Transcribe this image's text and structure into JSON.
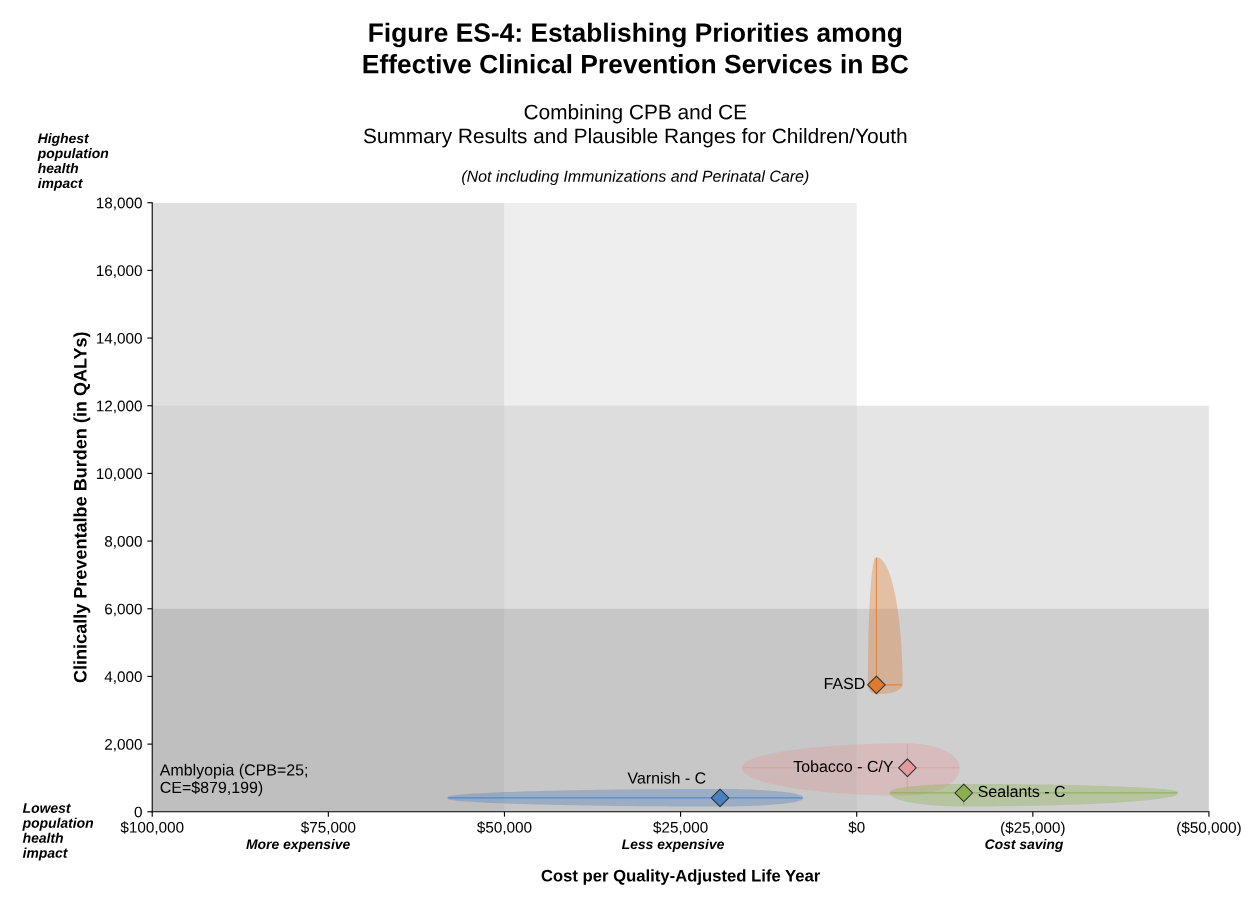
{
  "chart_data": {
    "type": "scatter",
    "title": "Figure ES-4: Establishing Priorities among\nEffective Clinical Prevention Services in BC",
    "subtitle": "Combining CPB and CE\nSummary Results and Plausible Ranges for Children/Youth",
    "xlabel": "Cost per Quality-Adjusted Life Year",
    "ylabel": "Clinically Preventalbe Burden (in QALYs)",
    "xlim": [
      100000,
      -50000
    ],
    "ylim": [
      0,
      18000
    ],
    "xticks": [
      {
        "value": 100000,
        "label": "$100,000"
      },
      {
        "value": 75000,
        "label": "$75,000"
      },
      {
        "value": 50000,
        "label": "$50,000"
      },
      {
        "value": 25000,
        "label": "$25,000"
      },
      {
        "value": 0,
        "label": "$0"
      },
      {
        "value": -25000,
        "label": "($25,000)"
      },
      {
        "value": -50000,
        "label": "($50,000)"
      }
    ],
    "yticks": [
      0,
      {
        "value": 2000,
        "label": "2,000"
      },
      {
        "value": 4000,
        "label": "4,000"
      },
      {
        "value": 6000,
        "label": "6,000"
      },
      {
        "value": 8000,
        "label": "8,000"
      },
      {
        "value": 10000,
        "label": "10,000"
      },
      {
        "value": 12000,
        "label": "12,000"
      },
      {
        "value": 14000,
        "label": "14,000"
      },
      {
        "value": 16000,
        "label": "16,000"
      },
      {
        "value": 18000,
        "label": "18,000"
      }
    ],
    "marker": "diamond",
    "grid": false,
    "bands": [
      {
        "axis": "x",
        "from": 100000,
        "to": 50000,
        "color": "#c0c0c0"
      },
      {
        "axis": "x",
        "from": 50000,
        "to": 0,
        "color": "#dedede"
      },
      {
        "axis": "y",
        "from": 6000,
        "to": 12000,
        "color": "#cccccc"
      },
      {
        "axis": "y",
        "from": 0,
        "to": 6000,
        "color": "#a0a0a0"
      }
    ],
    "series": [
      {
        "name": "FASD",
        "color": "#e07b2e",
        "x": [
          -2800
        ],
        "values": [
          3750
        ],
        "errors": [
          [
            3500,
            7500
          ]
        ],
        "xerrors": [
          [
            -6400,
            -1700
          ]
        ]
      },
      {
        "name": "Tobacco - C/Y",
        "color": "#e39a9c",
        "x": [
          -7200
        ],
        "values": [
          1300
        ],
        "errors": [
          [
            500,
            2000
          ]
        ],
        "xerrors": [
          [
            -14500,
            16200
          ]
        ]
      },
      {
        "name": "Varnish - C",
        "color": "#4a7fc0",
        "x": [
          19400
        ],
        "values": [
          410
        ],
        "errors": [
          [
            180,
            650
          ]
        ],
        "xerrors": [
          [
            7700,
            58000
          ]
        ]
      },
      {
        "name": "Sealants - C",
        "color": "#8ab04e",
        "x": [
          -15200
        ],
        "values": [
          560
        ],
        "errors": [
          [
            180,
            800
          ]
        ],
        "xerrors": [
          [
            -45500,
            -4800
          ]
        ]
      }
    ],
    "annotations": [
      "Highest\npopulation\nhealth\nimpact",
      "Lowest\npopulation\nhealth\nimpact",
      "More expensive",
      "Less expensive",
      "Cost saving",
      "Amblyopia (CPB=25;\nCE=$879,199)",
      "(Not including Immunizations and Perinatal Care)"
    ]
  }
}
